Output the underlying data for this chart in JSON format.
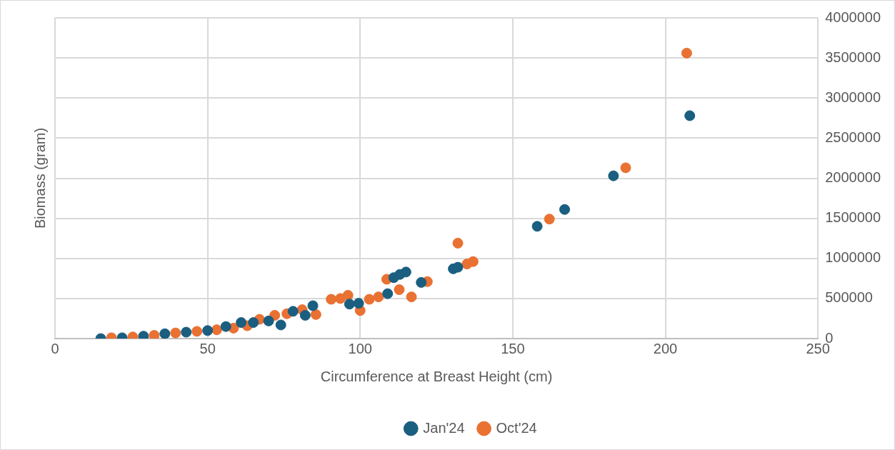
{
  "chart_data": {
    "type": "scatter",
    "xlabel": "Circumference at Breast Height (cm)",
    "ylabel": "Biomass (gram)",
    "xlim": [
      0,
      250
    ],
    "xticks": [
      0,
      50,
      100,
      150,
      200,
      250
    ],
    "ylim": [
      0,
      4000000
    ],
    "yticks": [
      0,
      500000,
      1000000,
      1500000,
      2000000,
      2500000,
      3000000,
      3500000,
      4000000
    ],
    "grid": true,
    "legend": "bottom",
    "marker": "circle",
    "series": [
      {
        "name": "Jan'24",
        "color": "#1a5e80",
        "x": [
          15,
          22,
          29,
          36,
          43,
          50,
          56,
          61,
          65,
          70,
          74,
          78,
          82,
          84.5,
          96.5,
          99.5,
          109,
          111,
          113,
          115,
          120,
          130.5,
          132,
          158,
          167,
          183,
          208
        ],
        "values": [
          0,
          10000,
          30000,
          60000,
          80000,
          100000,
          150000,
          200000,
          200000,
          220000,
          170000,
          340000,
          290000,
          410000,
          430000,
          440000,
          560000,
          760000,
          800000,
          830000,
          700000,
          870000,
          890000,
          1400000,
          1610000,
          2030000,
          2780000
        ]
      },
      {
        "name": "Oct'24",
        "color": "#e97132",
        "x": [
          18.5,
          25.5,
          32.5,
          39.5,
          46.5,
          53,
          58.5,
          63,
          67,
          72,
          76,
          81,
          85.5,
          90.5,
          93.5,
          96,
          100,
          103,
          106,
          108.7,
          112.8,
          116.8,
          122,
          132,
          135,
          137,
          162,
          187,
          207
        ],
        "values": [
          10000,
          20000,
          40000,
          70000,
          90000,
          110000,
          130000,
          160000,
          240000,
          290000,
          310000,
          360000,
          300000,
          490000,
          500000,
          540000,
          350000,
          490000,
          520000,
          740000,
          610000,
          520000,
          710000,
          1190000,
          930000,
          960000,
          1490000,
          2130000,
          3560000
        ]
      }
    ]
  }
}
